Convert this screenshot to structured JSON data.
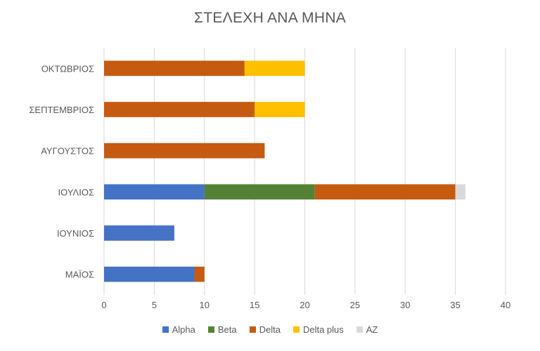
{
  "chart_data": {
    "type": "bar",
    "orientation": "horizontal",
    "stacked": true,
    "title": "ΣΤΕΛΕΧΗ ΑΝΑ ΜΗΝΑ",
    "categories": [
      "ΟΚΤΩΒΡΙΟΣ",
      "ΣΕΠΤΕΜΒΡΙΟΣ",
      "ΑΥΓΟΥΣΤΟΣ",
      "ΙΟΥΛΙΟΣ",
      "ΙΟΥΝΙΟΣ",
      "ΜΑΪΟΣ"
    ],
    "series": [
      {
        "name": "Alpha",
        "color": "#4472C4",
        "values": [
          0,
          0,
          0,
          10,
          7,
          9
        ]
      },
      {
        "name": "Beta",
        "color": "#548235",
        "values": [
          0,
          0,
          0,
          11,
          0,
          0
        ]
      },
      {
        "name": "Delta",
        "color": "#C55A11",
        "values": [
          14,
          15,
          16,
          14,
          0,
          1
        ]
      },
      {
        "name": "Delta plus",
        "color": "#FFC000",
        "values": [
          6,
          5,
          0,
          0,
          0,
          0
        ]
      },
      {
        "name": "AZ",
        "color": "#D9D9D9",
        "values": [
          0,
          0,
          0,
          1,
          0,
          0
        ]
      }
    ],
    "xlim": [
      0,
      40
    ],
    "xticks": [
      0,
      5,
      10,
      15,
      20,
      25,
      30,
      35,
      40
    ],
    "grid": "vertical",
    "legend_position": "bottom"
  }
}
